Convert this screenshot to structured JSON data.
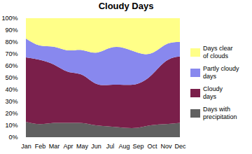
{
  "chart_data": {
    "type": "area",
    "title": "Cloudy Days",
    "categories": [
      "Jan",
      "Feb",
      "Mar",
      "Apr",
      "May",
      "Jun",
      "Jul",
      "Aug",
      "Sep",
      "Oct",
      "Nov",
      "Dec"
    ],
    "series": [
      {
        "name": "Days with\nprecipitation",
        "color": "#606060",
        "values": [
          13,
          11,
          12,
          12,
          11.881188,
          10,
          9,
          8,
          8,
          10.10101,
          11,
          12
        ]
      },
      {
        "name": "Cloudy\ndays",
        "color": "#7a1f4a",
        "values": [
          54,
          54,
          49,
          43,
          40.594059,
          35,
          35,
          36,
          37,
          42.424242,
          53,
          56
        ]
      },
      {
        "name": "Partly cloudy\ndays",
        "color": "#8888ee",
        "values": [
          16,
          12,
          15,
          18,
          20.792079,
          26,
          31,
          31,
          26,
          18.181818,
          14,
          12
        ]
      },
      {
        "name": "Days clear\nof clouds",
        "color": "#ffff88",
        "values": [
          17,
          23,
          24,
          27,
          26.732673,
          29,
          25,
          25,
          29,
          29.292929,
          22,
          20
        ]
      }
    ],
    "stacked": true,
    "ylim": [
      0,
      100
    ],
    "yticks": [
      {
        "value": 0,
        "label": "0%"
      },
      {
        "value": 10,
        "label": "10%"
      },
      {
        "value": 20,
        "label": "20%"
      },
      {
        "value": 30,
        "label": "30%"
      },
      {
        "value": 40,
        "label": "40%"
      },
      {
        "value": 50,
        "label": "50%"
      },
      {
        "value": 60,
        "label": "60%"
      },
      {
        "value": 70,
        "label": "70%"
      },
      {
        "value": 80,
        "label": "80%"
      },
      {
        "value": 90,
        "label": "90%"
      },
      {
        "value": 100,
        "label": "100%"
      }
    ],
    "grid": false,
    "legend": "right"
  }
}
